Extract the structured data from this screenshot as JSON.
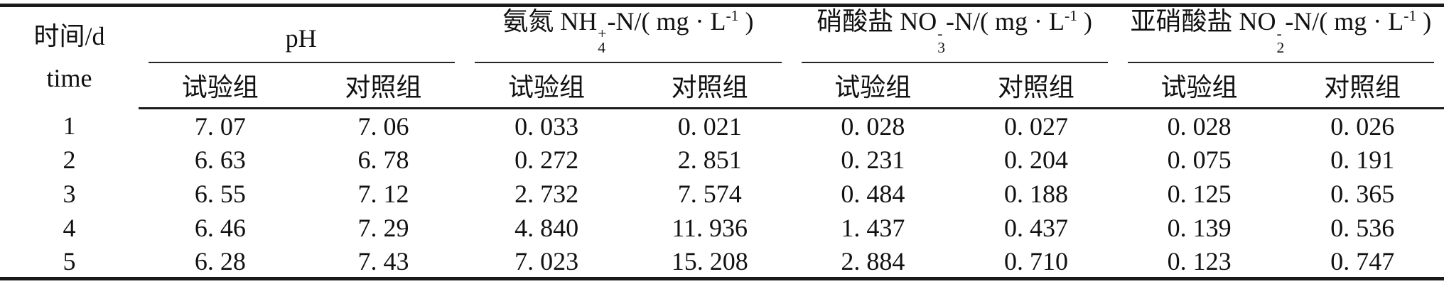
{
  "page": {
    "background_color": "#ffffff",
    "rule_color": "#1b1b1b",
    "text_color": "#111111"
  },
  "table": {
    "corner": {
      "line1": "时间/d",
      "line2": "time"
    },
    "groups": [
      {
        "prefix": "pH",
        "sup": "",
        "sub": "",
        "mid": "",
        "exp": "",
        "suffix": "",
        "subcols": [
          "试验组",
          "对照组"
        ]
      },
      {
        "prefix": "氨氮 NH",
        "sup": "+",
        "sub": "4",
        "mid": "-N/( mg · L",
        "exp": "-1",
        "suffix": " )",
        "subcols": [
          "试验组",
          "对照组"
        ]
      },
      {
        "prefix": "硝酸盐 NO",
        "sup": "-",
        "sub": "3",
        "mid": "-N/( mg · L",
        "exp": "-1",
        "suffix": " )",
        "subcols": [
          "试验组",
          "对照组"
        ]
      },
      {
        "prefix": "亚硝酸盐 NO",
        "sup": "-",
        "sub": "2",
        "mid": "-N/( mg · L",
        "exp": "-1",
        "suffix": " )",
        "subcols": [
          "试验组",
          "对照组"
        ]
      }
    ],
    "rows": [
      {
        "time": "1",
        "values": [
          "7. 07",
          "7. 06",
          "0. 033",
          "0. 021",
          "0. 028",
          "0. 027",
          "0. 028",
          "0. 026"
        ]
      },
      {
        "time": "2",
        "values": [
          "6. 63",
          "6. 78",
          "0. 272",
          "2. 851",
          "0. 231",
          "0. 204",
          "0. 075",
          "0. 191"
        ]
      },
      {
        "time": "3",
        "values": [
          "6. 55",
          "7. 12",
          "2. 732",
          "7. 574",
          "0. 484",
          "0. 188",
          "0. 125",
          "0. 365"
        ]
      },
      {
        "time": "4",
        "values": [
          "6. 46",
          "7. 29",
          "4. 840",
          "11. 936",
          "1. 437",
          "0. 437",
          "0. 139",
          "0. 536"
        ]
      },
      {
        "time": "5",
        "values": [
          "6. 28",
          "7. 43",
          "7. 023",
          "15. 208",
          "2. 884",
          "0. 710",
          "0. 123",
          "0. 747"
        ]
      }
    ]
  }
}
